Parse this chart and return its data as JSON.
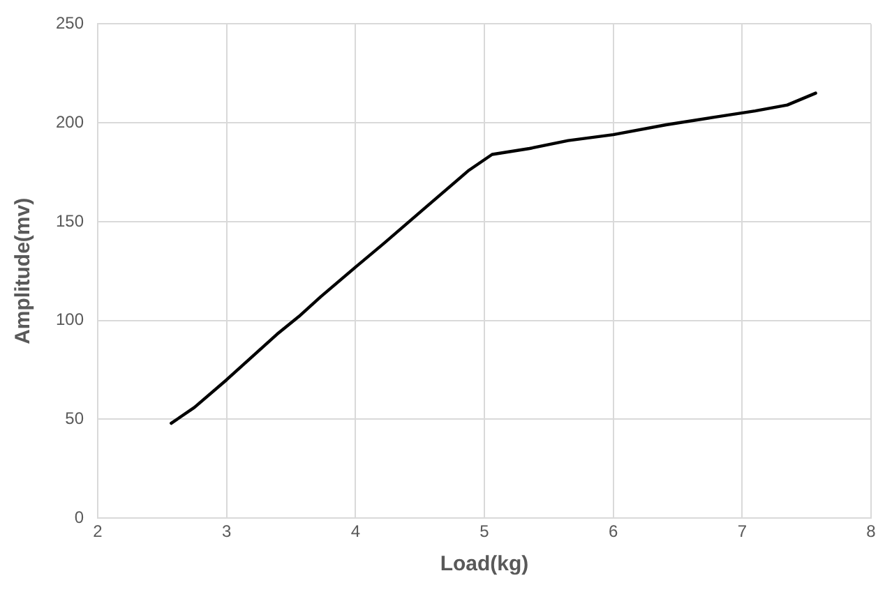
{
  "chart_data": {
    "type": "line",
    "xlabel": "Load(kg)",
    "ylabel": "Amplitude(mv)",
    "x": [
      2.57,
      2.75,
      3.0,
      3.39,
      3.56,
      3.73,
      4.0,
      4.22,
      4.54,
      4.88,
      5.06,
      5.35,
      5.65,
      6.0,
      6.41,
      6.8,
      7.1,
      7.35,
      7.57
    ],
    "series": [
      {
        "color": "#000000",
        "values": [
          48,
          56,
          70,
          93,
          102,
          112,
          127,
          139,
          157,
          176,
          184,
          187,
          191,
          194,
          199,
          203,
          206,
          209,
          215
        ]
      }
    ],
    "xlim": [
      2,
      8
    ],
    "xticks": [
      2,
      3,
      4,
      5,
      6,
      7,
      8
    ],
    "ylim": [
      0,
      250
    ],
    "yticks": [
      0,
      50,
      100,
      150,
      200,
      250
    ],
    "grid": true,
    "legend": false,
    "marker": "none",
    "line_style": "solid"
  }
}
